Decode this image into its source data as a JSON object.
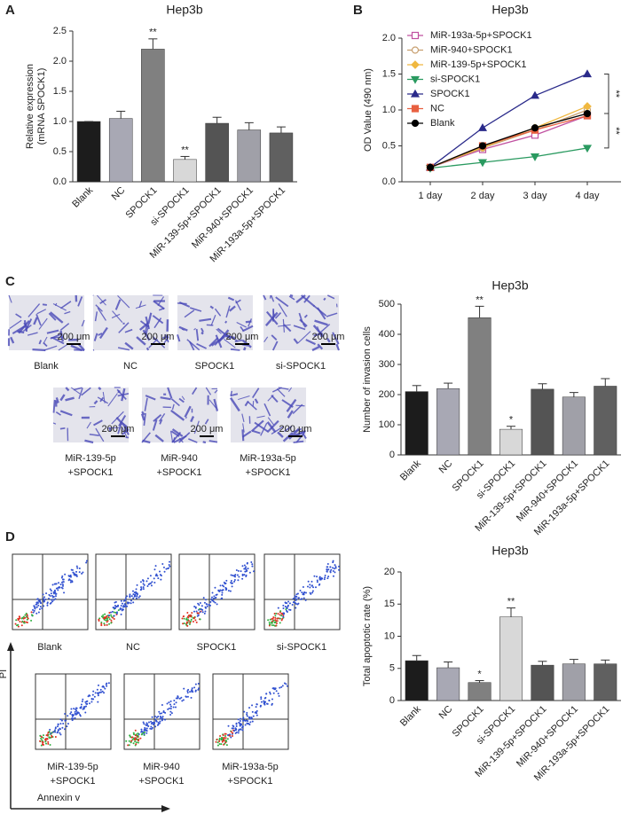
{
  "chart_data": [
    {
      "type": "bar",
      "title": "Hep3b",
      "ylabel": [
        "Relative expression",
        "(mRNA SPOCK1)"
      ],
      "categories": [
        "Blank",
        "NC",
        "SPOCK1",
        "si-SPOCK1",
        "MiR-139-5p+SPOCK1",
        "MiR-940+SPOCK1",
        "MiR-193a-5p+SPOCK1"
      ],
      "values": [
        1.0,
        1.05,
        2.2,
        0.37,
        0.97,
        0.86,
        0.81
      ],
      "errors": [
        0,
        0.12,
        0.17,
        0.05,
        0.1,
        0.12,
        0.1
      ],
      "significance": [
        null,
        null,
        "**",
        "**",
        null,
        null,
        null
      ],
      "colors": [
        "#1c1c1c",
        "#a8a8b4",
        "#808080",
        "#d8d8d8",
        "#545454",
        "#a0a0a8",
        "#606060"
      ],
      "ylim": [
        0,
        2.5
      ],
      "yticks": [
        {
          "value": 0,
          "label": "0.0"
        },
        0.5,
        {
          "value": 1,
          "label": "1.0"
        },
        1.5,
        {
          "value": 2,
          "label": "2.0"
        },
        2.5
      ]
    },
    {
      "type": "line",
      "title": "Hep3b",
      "ylabel": [
        "OD Value (490 nm)"
      ],
      "categories": [
        "1 day",
        "2 day",
        "3 day",
        "4 day"
      ],
      "series": [
        {
          "name": "MiR-193a-5p+SPOCK1",
          "color": "#c050a0",
          "marker": "square-open",
          "values": [
            0.2,
            0.45,
            0.65,
            0.92
          ]
        },
        {
          "name": "MiR-940+SPOCK1",
          "color": "#c8a070",
          "marker": "circle-open",
          "values": [
            0.2,
            0.47,
            0.72,
            1.0
          ]
        },
        {
          "name": "MiR-139-5p+SPOCK1",
          "color": "#f0b840",
          "marker": "diamond",
          "values": [
            0.2,
            0.48,
            0.75,
            1.05
          ]
        },
        {
          "name": "si-SPOCK1",
          "color": "#2a9a60",
          "marker": "triangle-down",
          "values": [
            0.19,
            0.27,
            0.35,
            0.47
          ]
        },
        {
          "name": "SPOCK1",
          "color": "#2a2a8a",
          "marker": "triangle",
          "values": [
            0.2,
            0.75,
            1.2,
            1.5
          ]
        },
        {
          "name": "NC",
          "color": "#e86040",
          "marker": "square",
          "values": [
            0.2,
            0.5,
            0.72,
            0.92
          ]
        },
        {
          "name": "Blank",
          "color": "#000000",
          "marker": "circle",
          "values": [
            0.2,
            0.5,
            0.75,
            0.95
          ]
        }
      ],
      "annotations": [
        "**",
        "**"
      ],
      "ylim": [
        0,
        2
      ],
      "yticks": [
        {
          "value": 0,
          "label": "0.0"
        },
        0.5,
        {
          "value": 1,
          "label": "1.0"
        },
        1.5,
        {
          "value": 2,
          "label": "2.0"
        }
      ]
    },
    {
      "type": "bar",
      "title": "Hep3b",
      "ylabel": [
        "Number of invasion cells"
      ],
      "categories": [
        "Blank",
        "NC",
        "SPOCK1",
        "si-SPOCK1",
        "MiR-139-5p+SPOCK1",
        "MiR-940+SPOCK1",
        "MiR-193a-5p+SPOCK1"
      ],
      "values": [
        210,
        220,
        455,
        85,
        218,
        192,
        228
      ],
      "errors": [
        20,
        18,
        38,
        10,
        18,
        15,
        25
      ],
      "significance": [
        null,
        null,
        "**",
        "*",
        null,
        null,
        null
      ],
      "colors": [
        "#1c1c1c",
        "#a8a8b4",
        "#808080",
        "#d8d8d8",
        "#545454",
        "#a0a0a8",
        "#606060"
      ],
      "ylim": [
        0,
        500
      ],
      "yticks": [
        0,
        100,
        200,
        300,
        400,
        500
      ]
    },
    {
      "type": "bar",
      "title": "Hep3b",
      "ylabel": [
        "Total apoptotic rate (%)"
      ],
      "categories": [
        "Blank",
        "NC",
        "SPOCK1",
        "si-SPOCK1",
        "MiR-139-5p+SPOCK1",
        "MiR-940+SPOCK1",
        "MiR-193a-5p+SPOCK1"
      ],
      "values": [
        6.2,
        5.1,
        2.8,
        13.0,
        5.5,
        5.7,
        5.7
      ],
      "errors": [
        0.8,
        0.9,
        0.3,
        1.4,
        0.6,
        0.7,
        0.6
      ],
      "significance": [
        null,
        null,
        "*",
        "**",
        null,
        null,
        null
      ],
      "colors": [
        "#1c1c1c",
        "#a8a8b4",
        "#808080",
        "#d8d8d8",
        "#545454",
        "#a0a0a8",
        "#606060"
      ],
      "ylim": [
        0,
        20
      ],
      "yticks": [
        0,
        5,
        10,
        15,
        20
      ]
    }
  ],
  "figure": {
    "panels": [
      "A",
      "B",
      "C",
      "D"
    ],
    "scale_bar": "200 μm",
    "invasion_captions": [
      [
        "Blank"
      ],
      [
        "NC"
      ],
      [
        "SPOCK1"
      ],
      [
        "si-SPOCK1"
      ],
      [
        "MiR-139-5p",
        "+SPOCK1"
      ],
      [
        "MiR-940",
        "+SPOCK1"
      ],
      [
        "MiR-193a-5p",
        "+SPOCK1"
      ]
    ],
    "flow_captions": [
      [
        "Blank"
      ],
      [
        "NC"
      ],
      [
        "SPOCK1"
      ],
      [
        "si-SPOCK1"
      ],
      [
        "MiR-139-5p",
        "+SPOCK1"
      ],
      [
        "MiR-940",
        "+SPOCK1"
      ],
      [
        "MiR-193a-5p",
        "+SPOCK1"
      ]
    ],
    "flow_y_axis": "PI",
    "flow_x_axis": "Annexin v"
  }
}
